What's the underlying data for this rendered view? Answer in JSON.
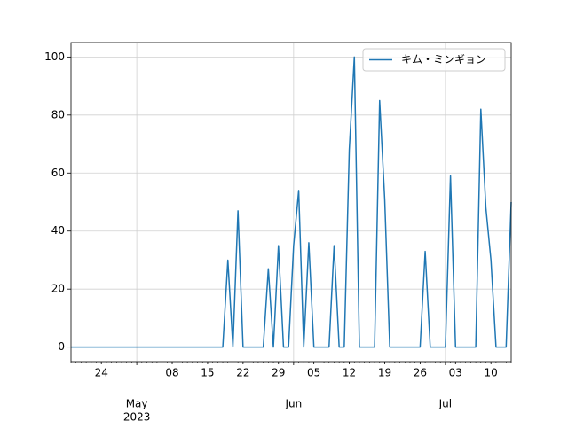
{
  "chart_data": {
    "type": "line",
    "x": [
      "2023-04-18",
      "2023-04-19",
      "2023-04-20",
      "2023-04-21",
      "2023-04-22",
      "2023-04-23",
      "2023-04-24",
      "2023-04-25",
      "2023-04-26",
      "2023-04-27",
      "2023-04-28",
      "2023-04-29",
      "2023-04-30",
      "2023-05-01",
      "2023-05-02",
      "2023-05-03",
      "2023-05-04",
      "2023-05-05",
      "2023-05-06",
      "2023-05-07",
      "2023-05-08",
      "2023-05-09",
      "2023-05-10",
      "2023-05-11",
      "2023-05-12",
      "2023-05-13",
      "2023-05-14",
      "2023-05-15",
      "2023-05-16",
      "2023-05-17",
      "2023-05-18",
      "2023-05-19",
      "2023-05-20",
      "2023-05-21",
      "2023-05-22",
      "2023-05-23",
      "2023-05-24",
      "2023-05-25",
      "2023-05-26",
      "2023-05-27",
      "2023-05-28",
      "2023-05-29",
      "2023-05-30",
      "2023-05-31",
      "2023-06-01",
      "2023-06-02",
      "2023-06-03",
      "2023-06-04",
      "2023-06-05",
      "2023-06-06",
      "2023-06-07",
      "2023-06-08",
      "2023-06-09",
      "2023-06-10",
      "2023-06-11",
      "2023-06-12",
      "2023-06-13",
      "2023-06-14",
      "2023-06-15",
      "2023-06-16",
      "2023-06-17",
      "2023-06-18",
      "2023-06-19",
      "2023-06-20",
      "2023-06-21",
      "2023-06-22",
      "2023-06-23",
      "2023-06-24",
      "2023-06-25",
      "2023-06-26",
      "2023-06-27",
      "2023-06-28",
      "2023-06-29",
      "2023-06-30",
      "2023-07-01",
      "2023-07-02",
      "2023-07-03",
      "2023-07-04",
      "2023-07-05",
      "2023-07-06",
      "2023-07-07",
      "2023-07-08",
      "2023-07-09",
      "2023-07-10",
      "2023-07-11",
      "2023-07-12",
      "2023-07-13",
      "2023-07-14"
    ],
    "series": [
      {
        "name": "キム・ミンギョン",
        "color": "#1f77b4",
        "values": [
          0,
          0,
          0,
          0,
          0,
          0,
          0,
          0,
          0,
          0,
          0,
          0,
          0,
          0,
          0,
          0,
          0,
          0,
          0,
          0,
          0,
          0,
          0,
          0,
          0,
          0,
          0,
          0,
          0,
          0,
          0,
          30,
          0,
          47,
          0,
          0,
          0,
          0,
          0,
          27,
          0,
          35,
          0,
          0,
          35,
          54,
          0,
          36,
          0,
          0,
          0,
          0,
          35,
          0,
          0,
          68,
          100,
          0,
          0,
          0,
          0,
          85,
          51,
          0,
          0,
          0,
          0,
          0,
          0,
          0,
          33,
          0,
          0,
          0,
          0,
          59,
          0,
          0,
          0,
          0,
          0,
          82,
          48,
          30,
          0,
          0,
          0,
          50
        ]
      }
    ],
    "xlim": [
      "2023-04-18",
      "2023-07-14"
    ],
    "xticks": [
      {
        "value": "2023-05-01",
        "label": "May"
      },
      {
        "value": "2023-06-01",
        "label": "Jun"
      },
      {
        "value": "2023-07-01",
        "label": "Jul"
      }
    ],
    "x_year_label": {
      "value": "2023-05-01",
      "label": "2023"
    },
    "x_minor_ticks": [
      {
        "value": "2023-04-24",
        "label": "24"
      },
      {
        "value": "2023-05-08",
        "label": "08"
      },
      {
        "value": "2023-05-15",
        "label": "15"
      },
      {
        "value": "2023-05-22",
        "label": "22"
      },
      {
        "value": "2023-05-29",
        "label": "29"
      },
      {
        "value": "2023-06-05",
        "label": "05"
      },
      {
        "value": "2023-06-12",
        "label": "12"
      },
      {
        "value": "2023-06-19",
        "label": "19"
      },
      {
        "value": "2023-06-26",
        "label": "26"
      },
      {
        "value": "2023-07-03",
        "label": "03"
      },
      {
        "value": "2023-07-10",
        "label": "10"
      }
    ],
    "ylim": [
      -5,
      105
    ],
    "yticks": [
      0,
      20,
      40,
      60,
      80,
      100
    ],
    "grid": true,
    "legend": "upper right"
  }
}
